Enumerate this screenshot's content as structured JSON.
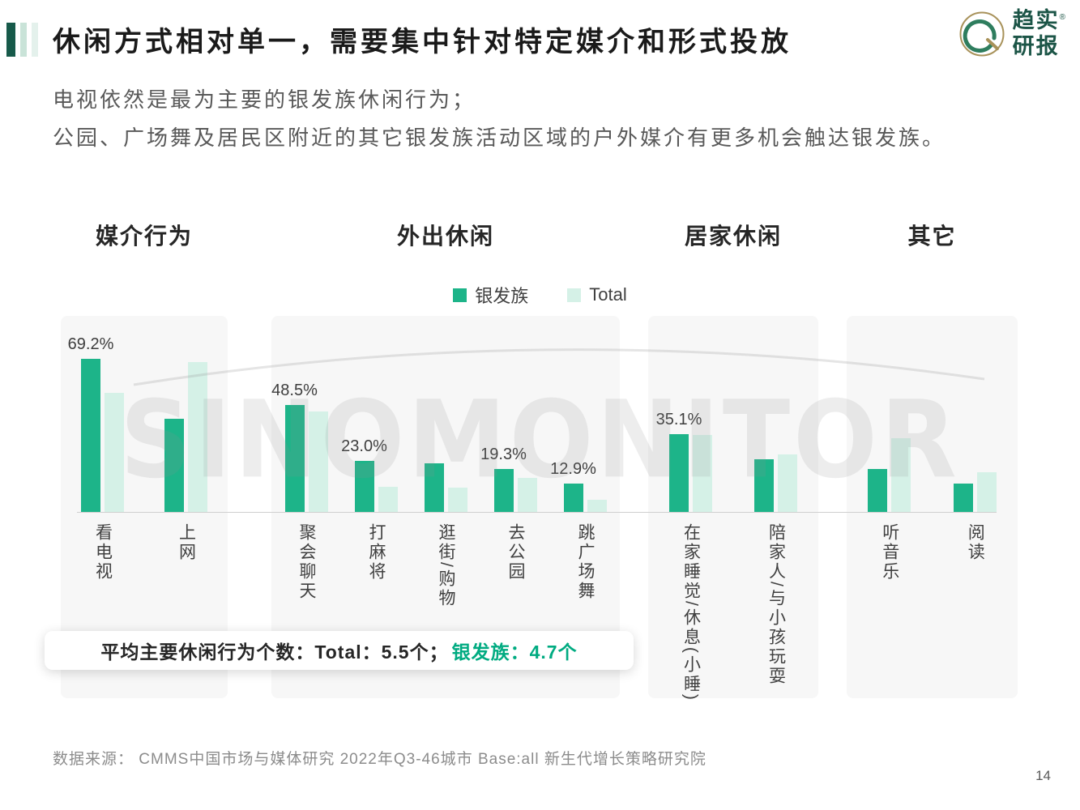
{
  "header": {
    "title": "休闲方式相对单一，需要集中针对特定媒介和形式投放"
  },
  "logo": {
    "line1": "趋实",
    "line2": "研报",
    "reg": "®"
  },
  "intro": {
    "line1": "电视依然是最为主要的银发族休闲行为；",
    "line2": "公园、广场舞及居民区附近的其它银发族活动区域的户外媒介有更多机会触达银发族。"
  },
  "watermark": "SINOMONITOR",
  "callout": {
    "prefix": "平均主要休闲行为个数：Total：5.5个；",
    "highlight": "银发族：4.7个"
  },
  "footer": {
    "source": "数据来源：  CMMS中国市场与媒体研究 2022年Q3-46城市 Base:all   新生代增长策略研究院",
    "page": "14"
  },
  "colors": {
    "silver_series": "#1db489",
    "total_series": "#d5f1e7",
    "accent_green": "#00ab81",
    "logo_green": "#1c5547",
    "logo_gold": "#a8925a"
  },
  "chart_data": {
    "type": "bar",
    "unit": "%",
    "ylim": [
      0,
      75
    ],
    "grid": false,
    "legend_position": "top-center",
    "legend": [
      {
        "name": "银发族",
        "color": "#1db489"
      },
      {
        "name": "Total",
        "color": "#d5f1e7"
      }
    ],
    "groups": [
      {
        "title": "媒介行为",
        "items": [
          {
            "label": "看电视",
            "silver": 69.2,
            "total": 53.8,
            "silver_label": "69.2%"
          },
          {
            "label": "上网",
            "silver": 42.1,
            "total": 67.7,
            "silver_label": null
          }
        ]
      },
      {
        "title": "外出休闲",
        "items": [
          {
            "label": "聚会聊天",
            "silver": 48.5,
            "total": 45.4,
            "silver_label": "48.5%"
          },
          {
            "label": "打麻将",
            "silver": 23.0,
            "total": 11.3,
            "silver_label": "23.0%"
          },
          {
            "label": "逛街/购物",
            "silver": 21.9,
            "total": 11.0,
            "silver_label": null
          },
          {
            "label": "去公园",
            "silver": 19.3,
            "total": 15.4,
            "silver_label": "19.3%"
          },
          {
            "label": "跳广场舞",
            "silver": 12.9,
            "total": 5.5,
            "silver_label": "12.9%"
          }
        ]
      },
      {
        "title": "居家休闲",
        "items": [
          {
            "label": "在家睡觉/休息(小睡)",
            "silver": 35.1,
            "total": 34.8,
            "silver_label": "35.1%"
          },
          {
            "label": "陪家人/与小孩玩耍",
            "silver": 23.8,
            "total": 26.0,
            "silver_label": null
          }
        ]
      },
      {
        "title": "其它",
        "items": [
          {
            "label": "听音乐",
            "silver": 19.4,
            "total": 33.3,
            "silver_label": null
          },
          {
            "label": "阅读",
            "silver": 12.8,
            "total": 17.9,
            "silver_label": null
          }
        ]
      }
    ]
  }
}
